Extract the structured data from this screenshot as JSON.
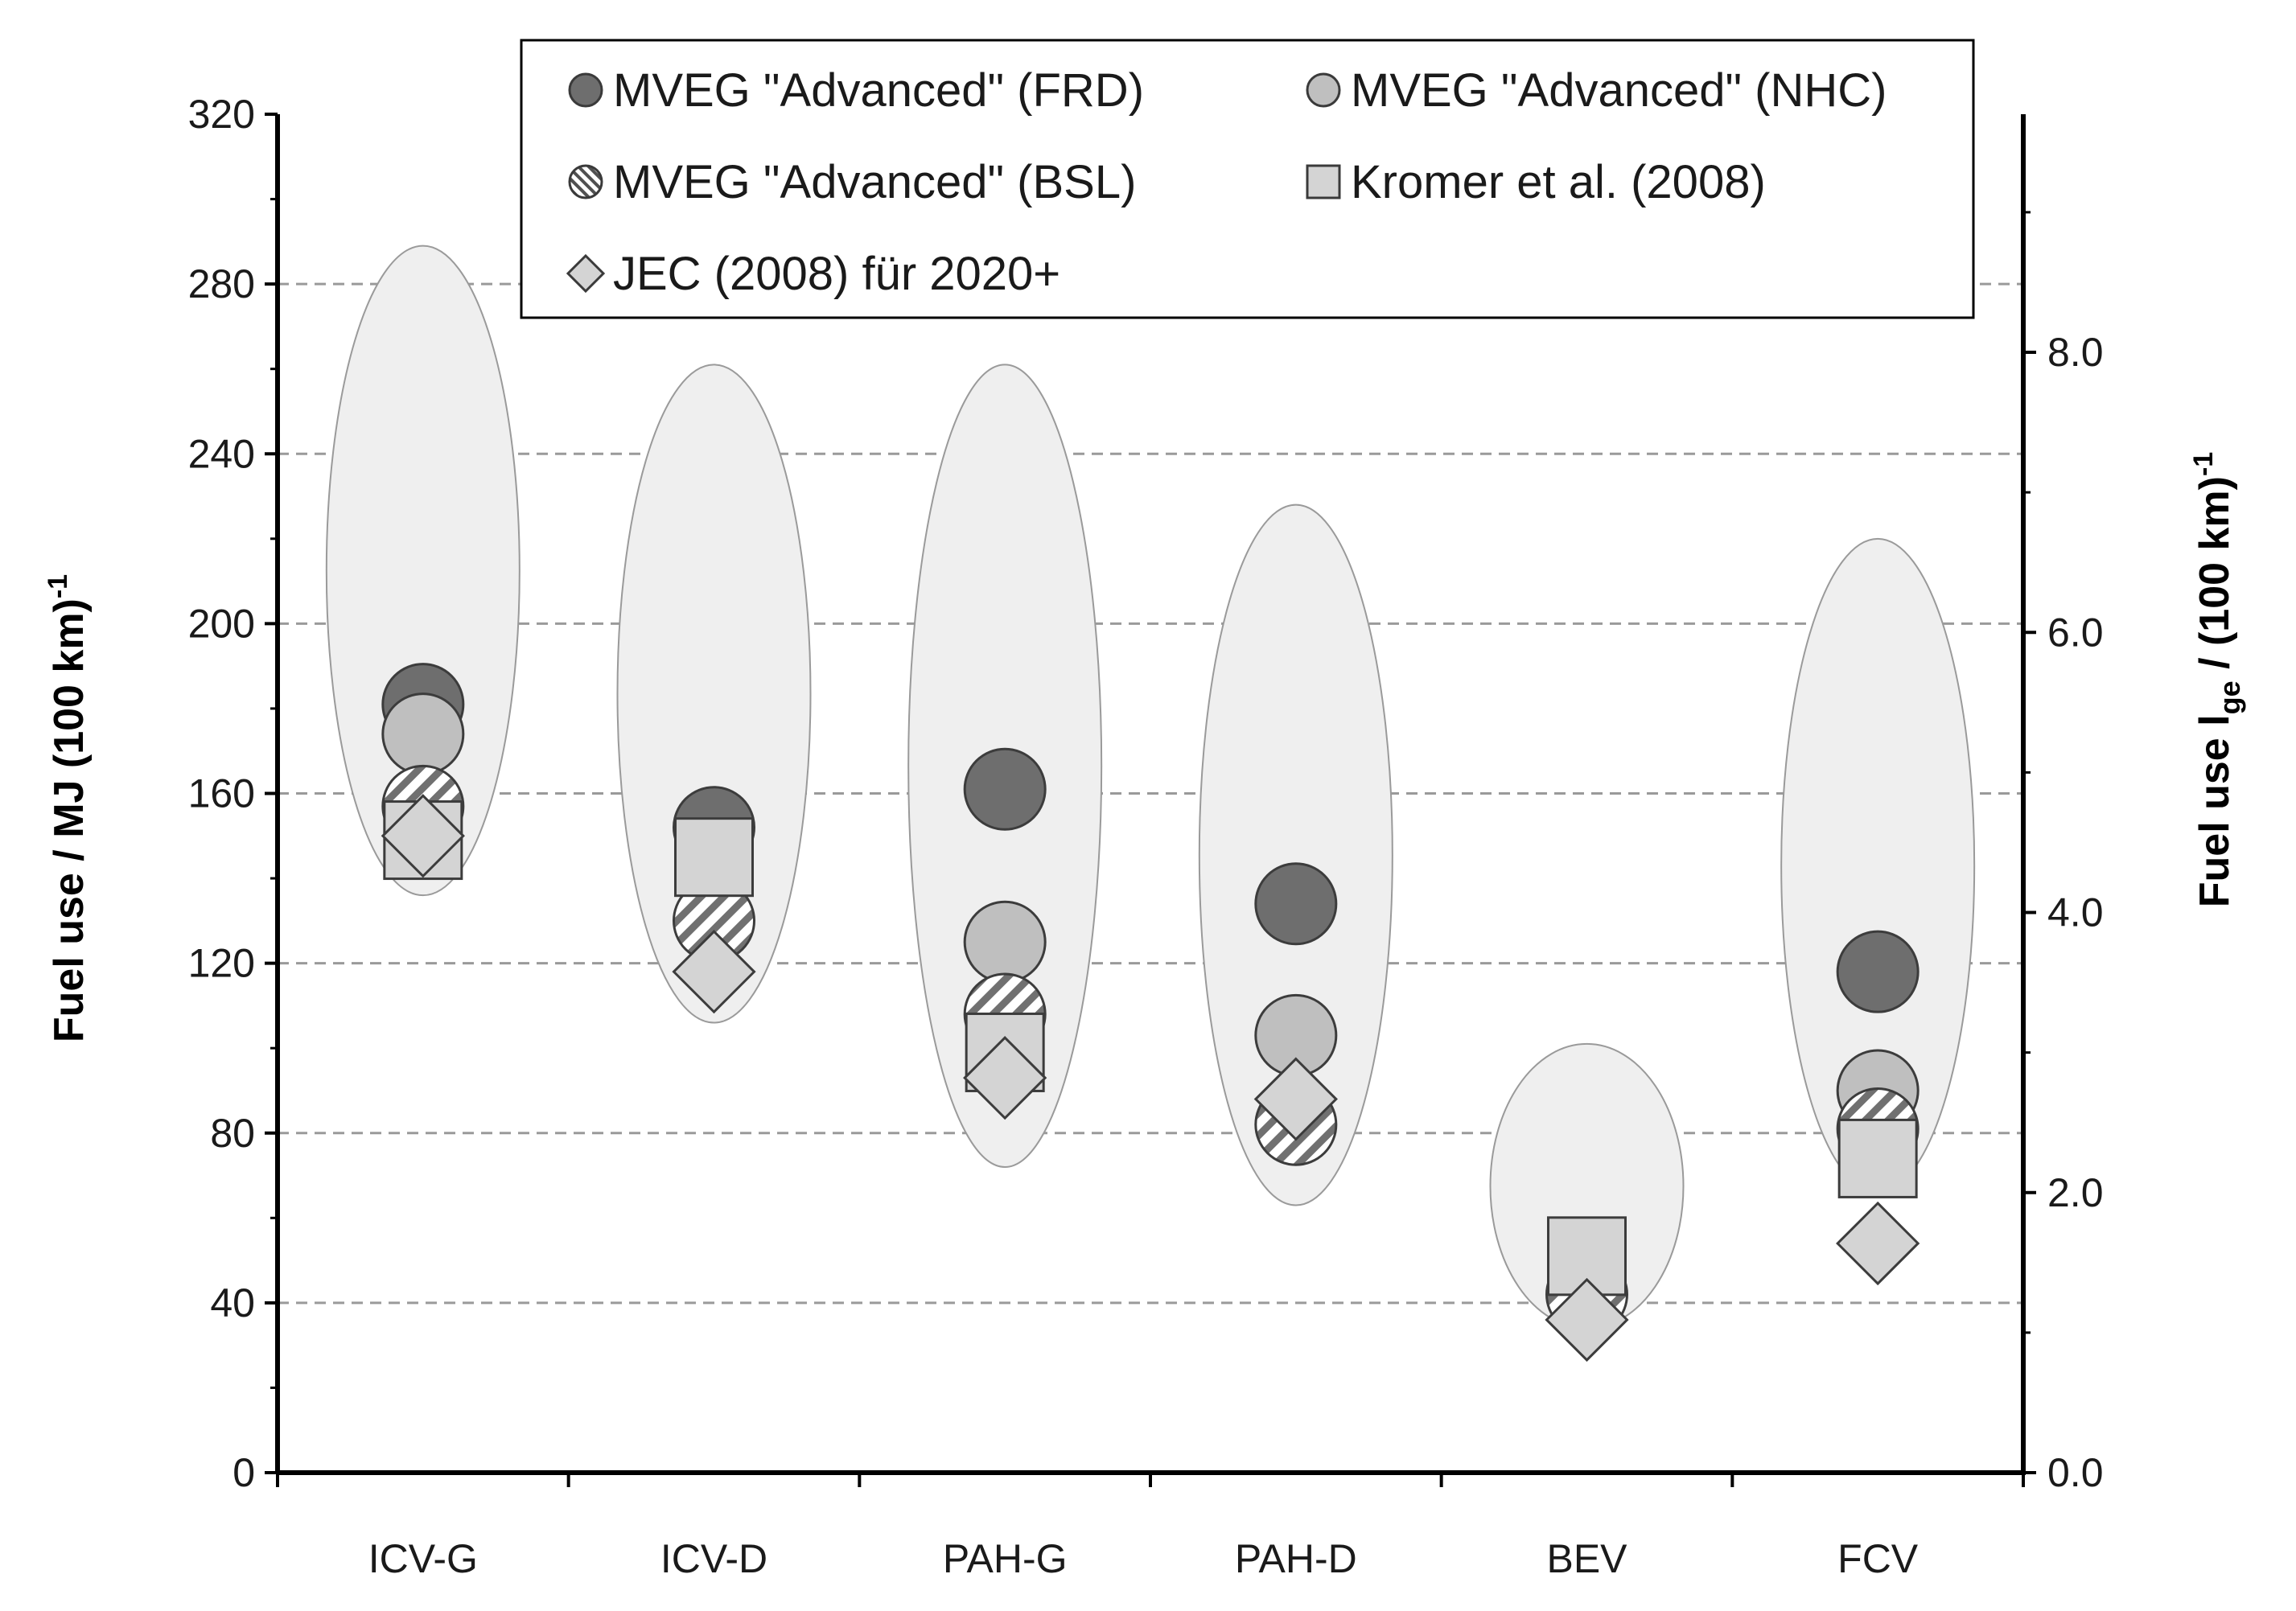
{
  "chart_data": {
    "type": "scatter",
    "categories": [
      "ICV-G",
      "ICV-D",
      "PAH-G",
      "PAH-D",
      "BEV",
      "FCV"
    ],
    "ylabel": "Fuel use / MJ (100 km)",
    "ylabel_sup": "-1",
    "y2label_pre": "Fuel use l",
    "y2label_sub": "ge",
    "y2label_post": " / (100 km)",
    "y2label_sup": "-1",
    "ylim": [
      0,
      320
    ],
    "yticks": [
      0,
      40,
      80,
      120,
      160,
      200,
      240,
      280,
      320
    ],
    "y2lim": [
      0.0,
      9.7
    ],
    "y2ticks": [
      0.0,
      2.0,
      4.0,
      6.0,
      8.0
    ],
    "y2tick_labels": [
      "0.0",
      "2.0",
      "4.0",
      "6.0",
      "8.0"
    ],
    "grid": true,
    "legend_position": "top-center",
    "series": [
      {
        "name": "MVEG \"Advanced\" (FRD)",
        "marker": "circle-dark",
        "values": [
          181,
          152,
          161,
          134,
          null,
          118
        ]
      },
      {
        "name": "MVEG \"Advanced\" (NHC)",
        "marker": "circle-light",
        "values": [
          174,
          null,
          125,
          103,
          null,
          90
        ]
      },
      {
        "name": "MVEG \"Advanced\" (BSL)",
        "marker": "circle-hatched",
        "values": [
          157,
          130,
          108,
          82,
          42,
          81
        ]
      },
      {
        "name": "Kromer et al. (2008)",
        "marker": "square",
        "values": [
          149,
          145,
          99,
          null,
          51,
          74
        ]
      },
      {
        "name": "JEC (2008) für 2020+",
        "marker": "diamond",
        "values": [
          150,
          118,
          93,
          88,
          36,
          54
        ]
      }
    ],
    "ranges": [
      {
        "category": "ICV-G",
        "low": 136,
        "high": 289
      },
      {
        "category": "ICV-D",
        "low": 106,
        "high": 261
      },
      {
        "category": "PAH-G",
        "low": 72,
        "high": 261
      },
      {
        "category": "PAH-D",
        "low": 63,
        "high": 228
      },
      {
        "category": "BEV",
        "low": 34,
        "high": 101
      },
      {
        "category": "FCV",
        "low": 66,
        "high": 220
      }
    ],
    "colors": {
      "dark": "#6e6e6e",
      "light": "#bfbfbf",
      "box": "#d4d4d4",
      "ellipse_fill": "#efefef",
      "ellipse_stroke": "#9a9a9a",
      "grid": "#9a9a9a",
      "axis": "#000000"
    }
  }
}
